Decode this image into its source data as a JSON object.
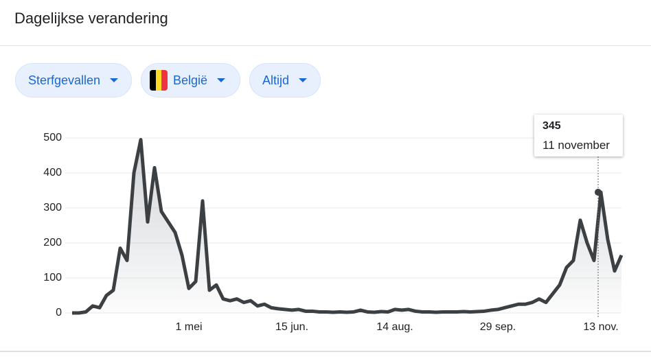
{
  "header": {
    "title": "Dagelijkse verandering"
  },
  "filters": [
    "Sterfgevallen",
    "België",
    "Altijd"
  ],
  "chart_data": {
    "type": "line",
    "categories": [
      null,
      null,
      null,
      null,
      null,
      null,
      null,
      null,
      null,
      null,
      null,
      null,
      null,
      null,
      null,
      null,
      null,
      "1 mei",
      null,
      null,
      null,
      null,
      null,
      null,
      null,
      null,
      null,
      null,
      null,
      null,
      null,
      null,
      "15 jun.",
      null,
      null,
      null,
      null,
      null,
      null,
      null,
      null,
      null,
      null,
      null,
      null,
      null,
      null,
      "14 aug.",
      null,
      null,
      null,
      null,
      null,
      null,
      null,
      null,
      null,
      null,
      null,
      null,
      null,
      null,
      "29 sep.",
      null,
      null,
      null,
      null,
      null,
      null,
      null,
      null,
      null,
      null,
      null,
      null,
      null,
      null,
      "13 nov.",
      null,
      null,
      null
    ],
    "values": [
      0,
      0,
      3,
      20,
      15,
      50,
      65,
      185,
      150,
      400,
      495,
      260,
      415,
      290,
      260,
      230,
      165,
      70,
      90,
      320,
      65,
      80,
      40,
      35,
      40,
      30,
      35,
      20,
      25,
      15,
      12,
      10,
      8,
      10,
      5,
      5,
      3,
      3,
      2,
      3,
      2,
      3,
      8,
      3,
      2,
      4,
      3,
      10,
      8,
      10,
      5,
      3,
      3,
      2,
      3,
      3,
      3,
      4,
      3,
      4,
      5,
      8,
      10,
      15,
      20,
      25,
      25,
      30,
      40,
      30,
      55,
      80,
      130,
      150,
      265,
      200,
      150,
      345,
      210,
      120,
      165
    ],
    "color": "#3c4043",
    "ylim": [
      0,
      500
    ],
    "yticks": [
      0,
      100,
      200,
      300,
      400,
      500
    ],
    "grid": true,
    "tooltip_date": "11 november"
  }
}
